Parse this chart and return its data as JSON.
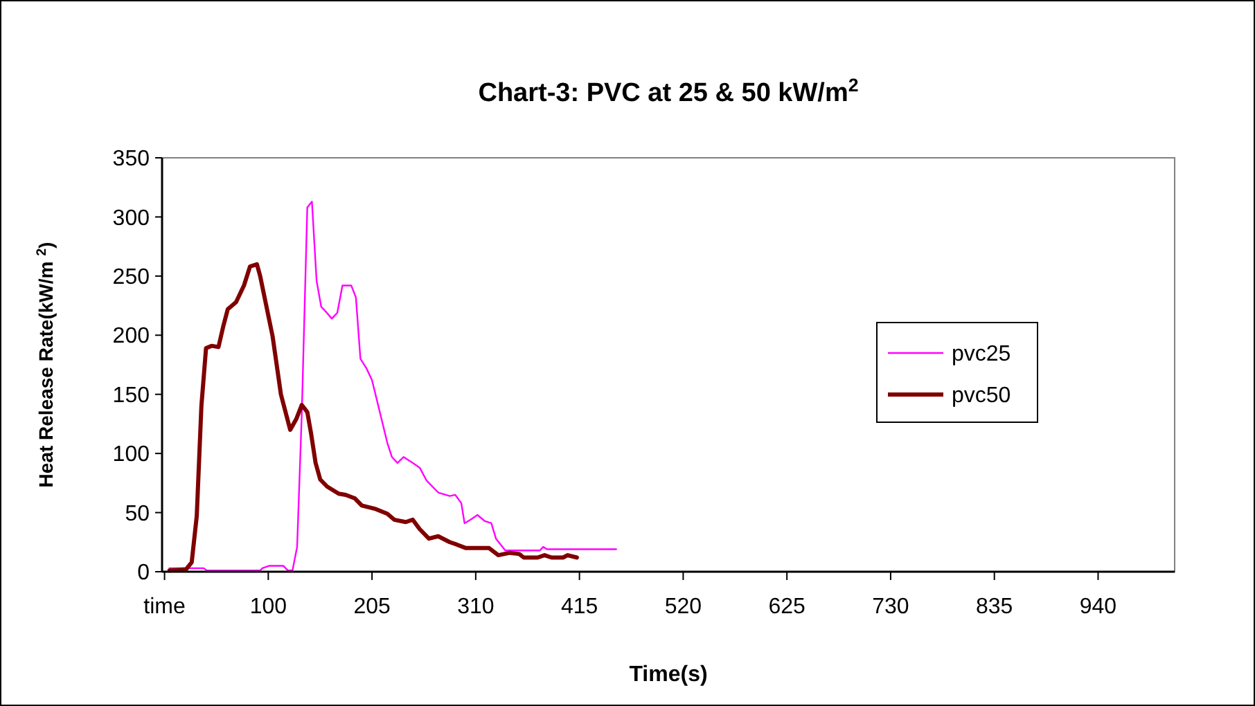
{
  "chart_data": {
    "type": "line",
    "title": "Chart-3: PVC at 25 & 50 kW/m$^{2}$",
    "xlabel": "Time(s)",
    "ylabel": "Heat Release Rate(kW/m $^{2}$)",
    "xlim": [
      -7.5,
      1017.5
    ],
    "xticks": [
      {
        "value": -5,
        "label": "time"
      },
      100,
      205,
      310,
      415,
      520,
      625,
      730,
      835,
      940
    ],
    "ylim": [
      0,
      350
    ],
    "yticks": [
      0,
      50,
      100,
      150,
      200,
      250,
      300,
      350
    ],
    "grid": false,
    "legend": "right",
    "marker": "none",
    "line_style": "solid",
    "series": [
      {
        "name": "pvc25",
        "color": "#ff00ff",
        "x": [
          0,
          34.6,
          37.9,
          56.6,
          91.8,
          94.1,
          101.1,
          115.2,
          119.9,
          124.5,
          129.2,
          133.9,
          139.5,
          144.2,
          148.9,
          153.6,
          158.2,
          164.3,
          169.9,
          175.1,
          184,
          188.7,
          193.3,
          199.4,
          205,
          213.5,
          220.5,
          225.2,
          230.8,
          236.9,
          246.2,
          253.3,
          260.3,
          272,
          283.7,
          289.3,
          295.4,
          298.7,
          304.8,
          311.8,
          318.8,
          325.8,
          330.5,
          339.9,
          375,
          378.3,
          382.1,
          452.2
        ],
        "values": [
          3,
          3,
          1,
          1,
          1,
          3,
          5,
          5,
          1,
          1,
          21,
          133,
          308,
          313,
          246,
          224,
          220,
          214,
          219,
          242,
          242,
          232,
          180,
          172,
          162,
          133,
          109,
          97,
          92,
          97,
          92,
          88,
          77,
          67,
          64,
          65,
          58,
          41,
          44,
          48,
          43,
          41,
          28,
          18,
          18,
          21,
          19,
          19
        ]
      },
      {
        "name": "pvc50",
        "color": "#800000",
        "x": [
          0,
          16.8,
          22.5,
          27.6,
          32.3,
          37,
          42.6,
          49.6,
          54.3,
          59,
          67.4,
          75.4,
          81.5,
          88.5,
          91.8,
          104.4,
          112.8,
          122.2,
          128.3,
          133.9,
          139.5,
          143.3,
          147.9,
          152.6,
          159.6,
          171.3,
          178.4,
          187.7,
          194.7,
          208.8,
          220.5,
          227.5,
          239.2,
          246.2,
          253.3,
          262.6,
          272,
          283.7,
          290.7,
          300.1,
          323.5,
          332.9,
          344.6,
          354,
          358.6,
          372.7,
          379.7,
          386.7,
          398.4,
          403,
          412.4
        ],
        "values": [
          1,
          2,
          8,
          47,
          140,
          189,
          191,
          190,
          207,
          222,
          228,
          242,
          258,
          260,
          250,
          199,
          150,
          120,
          129,
          141,
          135,
          117,
          92,
          78,
          72,
          66,
          65,
          62,
          56,
          53,
          49,
          44,
          42,
          44,
          36,
          28,
          30,
          25,
          23,
          20,
          20,
          14,
          16,
          15,
          12,
          12,
          14,
          12,
          12,
          14,
          12
        ]
      }
    ]
  }
}
